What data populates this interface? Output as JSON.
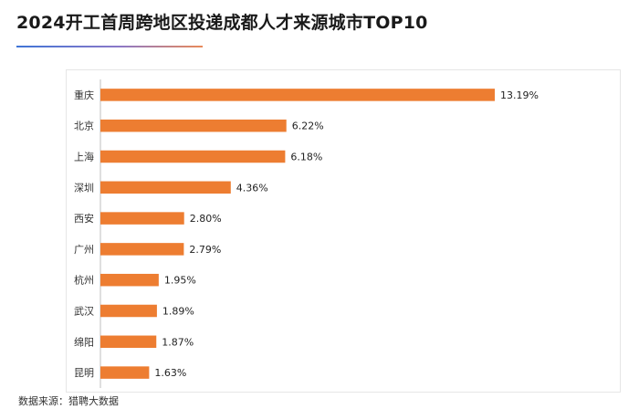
{
  "title": "2024开工首周跨地区投递成都人才来源城市TOP10",
  "source": "数据来源：猎聘大数据",
  "colors": {
    "bar": "#ed7d31",
    "accent_line": "#3f74d6",
    "axis": "#bfbfbf"
  },
  "chart_data": {
    "type": "bar",
    "orientation": "horizontal",
    "title": "2024开工首周跨地区投递成都人才来源城市TOP10",
    "categories": [
      "重庆",
      "北京",
      "上海",
      "深圳",
      "西安",
      "广州",
      "杭州",
      "武汉",
      "绵阳",
      "昆明"
    ],
    "values": [
      13.19,
      6.22,
      6.18,
      4.36,
      2.8,
      2.79,
      1.95,
      1.89,
      1.87,
      1.63
    ],
    "data_labels": [
      "13.19%",
      "6.22%",
      "6.18%",
      "4.36%",
      "2.80%",
      "2.79%",
      "1.95%",
      "1.89%",
      "1.87%",
      "1.63%"
    ],
    "xlabel": "",
    "ylabel": "",
    "xlim": [
      0,
      13.19
    ],
    "grid": false,
    "legend": "none"
  }
}
